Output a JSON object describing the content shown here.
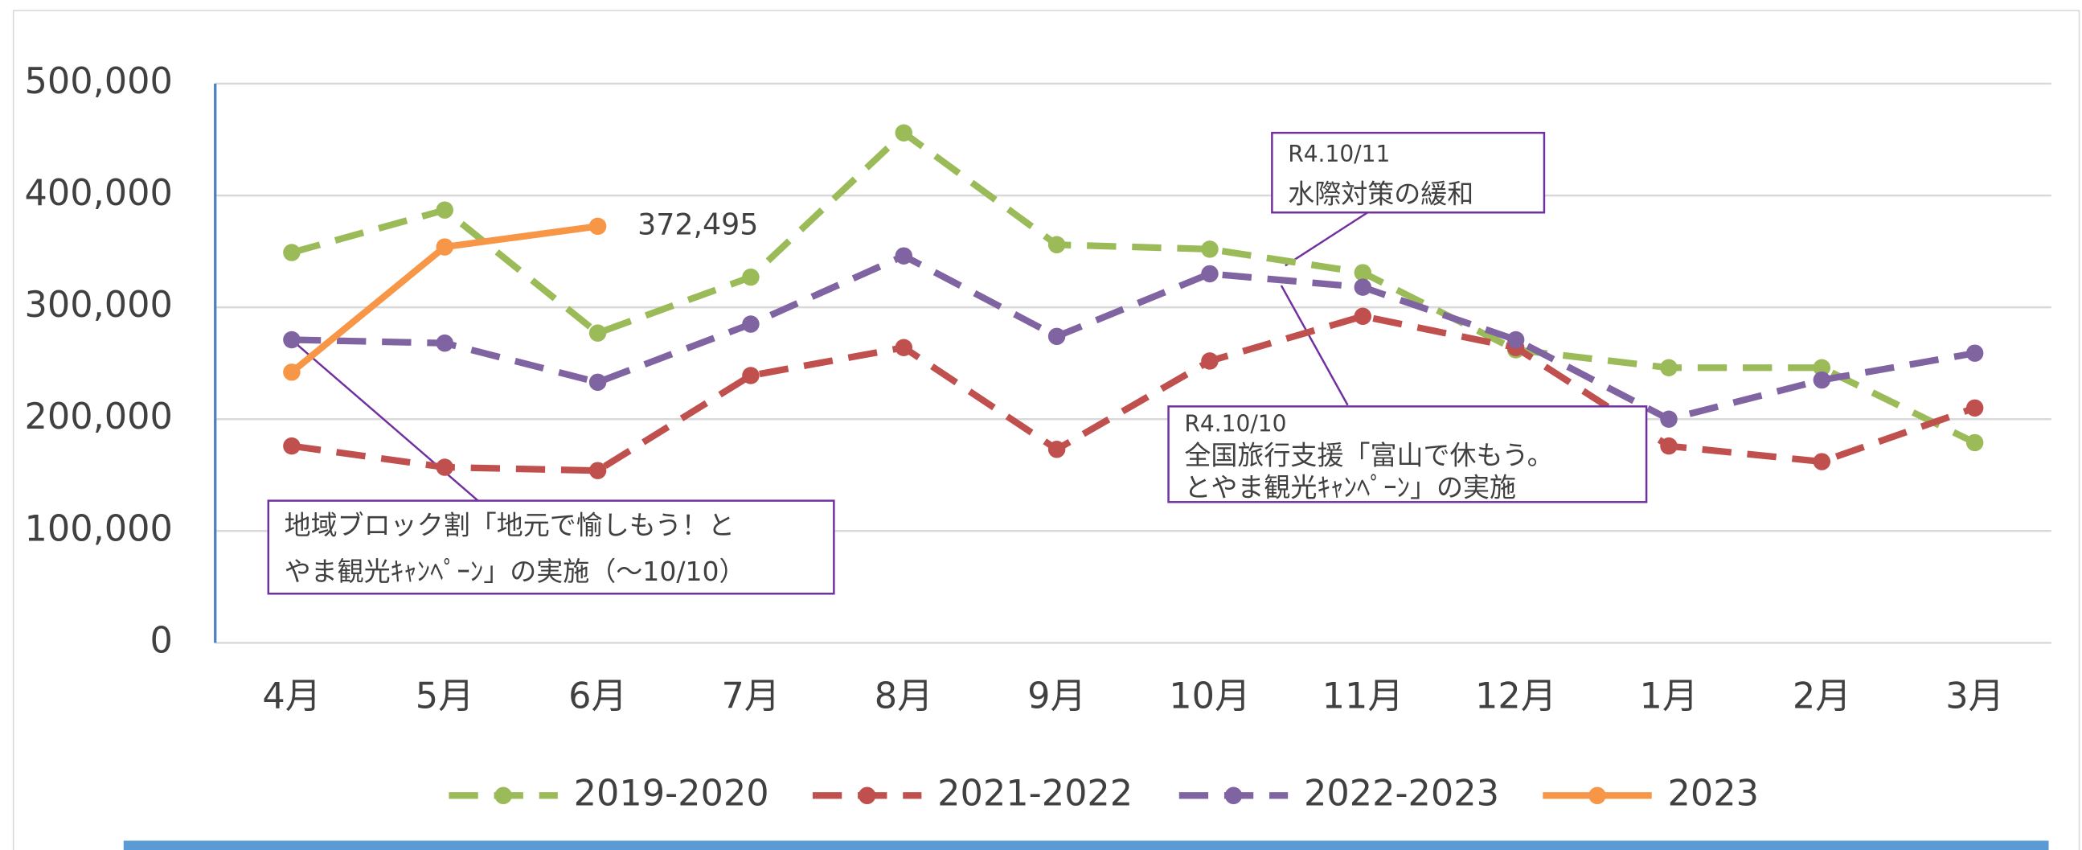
{
  "chart_data": {
    "type": "line",
    "categories": [
      "4月",
      "5月",
      "6月",
      "7月",
      "8月",
      "9月",
      "10月",
      "11月",
      "12月",
      "1月",
      "2月",
      "3月"
    ],
    "ylim": [
      0,
      500000
    ],
    "yticks": [
      0,
      {
        "value": 100000,
        "label": "100,000"
      },
      {
        "value": 200000,
        "label": "200,000"
      },
      {
        "value": 300000,
        "label": "300,000"
      },
      {
        "value": 400000,
        "label": "400,000"
      },
      {
        "value": 500000,
        "label": "500,000"
      }
    ],
    "grid": true,
    "legend": "bottom",
    "series": [
      {
        "name": "2019-2020",
        "color": "#9bbb59",
        "dashed": true,
        "values": [
          349000,
          387000,
          277000,
          327000,
          456000,
          356000,
          352000,
          331000,
          262000,
          246000,
          246000,
          179000
        ]
      },
      {
        "name": "2021-2022",
        "color": "#c0504d",
        "dashed": true,
        "values": [
          176000,
          157000,
          154000,
          239000,
          264000,
          173000,
          252000,
          292000,
          264000,
          176000,
          162000,
          210000
        ]
      },
      {
        "name": "2022-2023",
        "color": "#8064a2",
        "dashed": true,
        "values": [
          271000,
          268000,
          233000,
          285000,
          346000,
          274000,
          330000,
          318000,
          271000,
          200000,
          235000,
          259000
        ]
      },
      {
        "name": "2023",
        "color": "#f79646",
        "dashed": false,
        "values": [
          242000,
          354000,
          372495,
          null,
          null,
          null,
          null,
          null,
          null,
          null,
          null,
          null
        ],
        "value_labels": [
          null,
          null,
          "372,495",
          null,
          null,
          null,
          null,
          null,
          null,
          null,
          null,
          null
        ]
      }
    ],
    "annotations": [
      {
        "lines": [
          "R4.10/11",
          "水際対策の緩和"
        ]
      },
      {
        "lines": [
          "R4.10/10",
          "全国旅行支援「富山で休もう。",
          "とやま観光ｷｬﾝﾍﾟｰﾝ」の実施"
        ]
      },
      {
        "lines": [
          "地域ブロック割「地元で愉しもう！と",
          "やま観光ｷｬﾝﾍﾟｰﾝ」の実施（～10/10）"
        ]
      }
    ]
  }
}
